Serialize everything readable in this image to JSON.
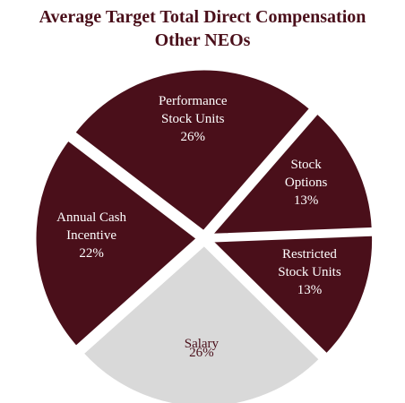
{
  "chart_data": {
    "type": "pie",
    "title": "Average Target Total Direct Compensation",
    "subtitle": "Other NEOs",
    "categories": [
      "Performance\nStock Units",
      "Stock\nOptions",
      "Restricted\nStock Units",
      "Salary",
      "Annual Cash\nIncentive"
    ],
    "values": [
      26,
      13,
      13,
      26,
      22
    ],
    "value_labels": [
      "26%",
      "13%",
      "13%",
      "26%",
      "22%"
    ],
    "colors": [
      "#4a0f1a",
      "#4a0f1a",
      "#4a0f1a",
      "#d9d9d9",
      "#4a0f1a"
    ]
  }
}
